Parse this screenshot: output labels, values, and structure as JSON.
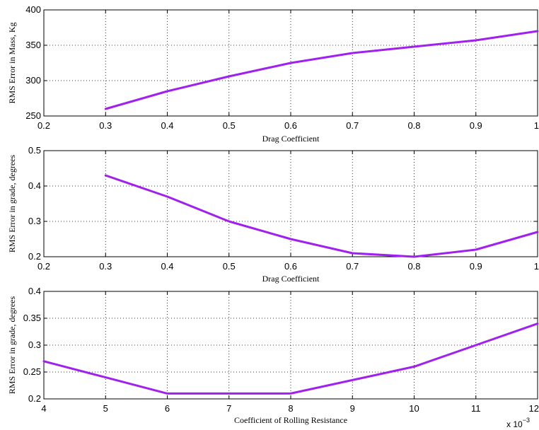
{
  "colors": {
    "series": "#a020f0"
  },
  "chart_data": [
    {
      "type": "line",
      "xlabel": "Drag Coefficient",
      "ylabel": "RMS Error in Mass, Kg",
      "xlim": [
        0.2,
        1
      ],
      "ylim": [
        250,
        400
      ],
      "xticks": [
        0.2,
        0.3,
        0.4,
        0.5,
        0.6,
        0.7,
        0.8,
        0.9,
        1
      ],
      "xtick_labels": [
        "0.2",
        "0.3",
        "0.4",
        "0.5",
        "0.6",
        "0.7",
        "0.8",
        "0.9",
        "1"
      ],
      "yticks": [
        250,
        300,
        350,
        400
      ],
      "ytick_labels": [
        "250",
        "300",
        "350",
        "400"
      ],
      "grid": true,
      "x": [
        0.3,
        0.4,
        0.5,
        0.6,
        0.7,
        0.8,
        0.9,
        1.0
      ],
      "y": [
        260,
        285,
        306,
        325,
        339,
        348,
        357,
        370
      ]
    },
    {
      "type": "line",
      "xlabel": "Drag Coefficient",
      "ylabel": "RMS Error in grade, degrees",
      "xlim": [
        0.2,
        1
      ],
      "ylim": [
        0.2,
        0.5
      ],
      "xticks": [
        0.2,
        0.3,
        0.4,
        0.5,
        0.6,
        0.7,
        0.8,
        0.9,
        1
      ],
      "xtick_labels": [
        "0.2",
        "0.3",
        "0.4",
        "0.5",
        "0.6",
        "0.7",
        "0.8",
        "0.9",
        "1"
      ],
      "yticks": [
        0.2,
        0.3,
        0.4,
        0.5
      ],
      "ytick_labels": [
        "0.2",
        "0.3",
        "0.4",
        "0.5"
      ],
      "grid": true,
      "x": [
        0.3,
        0.4,
        0.5,
        0.6,
        0.7,
        0.8,
        0.9,
        1.0
      ],
      "y": [
        0.43,
        0.37,
        0.3,
        0.25,
        0.21,
        0.2,
        0.22,
        0.27
      ]
    },
    {
      "type": "line",
      "xlabel": "Coefficient of Rolling Resistance",
      "ylabel": "RMS Error in grade, degrees",
      "xlim": [
        4,
        12
      ],
      "ylim": [
        0.2,
        0.4
      ],
      "xticks": [
        4,
        5,
        6,
        7,
        8,
        9,
        10,
        11,
        12
      ],
      "xtick_labels": [
        "4",
        "5",
        "6",
        "7",
        "8",
        "9",
        "10",
        "11",
        "12"
      ],
      "yticks": [
        0.2,
        0.25,
        0.3,
        0.35,
        0.4
      ],
      "ytick_labels": [
        "0.2",
        "0.25",
        "0.3",
        "0.35",
        "0.4"
      ],
      "grid": true,
      "x_multiplier_base": "x 10",
      "x_multiplier_exp": "−3",
      "x": [
        4,
        5,
        6,
        7,
        8,
        9,
        10,
        11,
        12
      ],
      "y": [
        0.27,
        0.24,
        0.21,
        0.21,
        0.21,
        0.235,
        0.26,
        0.3,
        0.34
      ]
    }
  ]
}
